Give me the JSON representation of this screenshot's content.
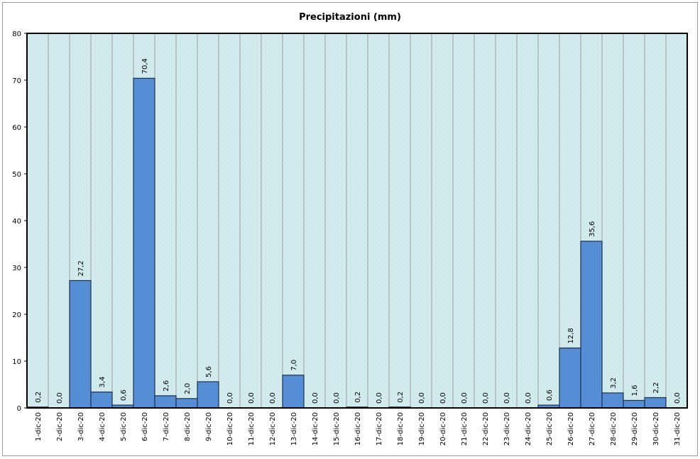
{
  "chart_data": {
    "type": "bar",
    "title": "Precipitazioni (mm)",
    "xlabel": "",
    "ylabel": "",
    "ylim": [
      0,
      80
    ],
    "yticks": [
      0,
      10,
      20,
      30,
      40,
      50,
      60,
      70,
      80
    ],
    "grid": true,
    "legend": "none",
    "colors": {
      "bar": "#558ed5",
      "bar_border": "#1f2f4f",
      "plot_bg": "#d9eef0",
      "grid": "#a0a0a0"
    },
    "categories": [
      "1-dic-20",
      "2-dic-20",
      "3-dic-20",
      "4-dic-20",
      "5-dic-20",
      "6-dic-20",
      "7-dic-20",
      "8-dic-20",
      "9-dic-20",
      "10-dic-20",
      "11-dic-20",
      "12-dic-20",
      "13-dic-20",
      "14-dic-20",
      "15-dic-20",
      "16-dic-20",
      "17-dic-20",
      "18-dic-20",
      "19-dic-20",
      "20-dic-20",
      "21-dic-20",
      "22-dic-20",
      "23-dic-20",
      "24-dic-20",
      "25-dic-20",
      "26-dic-20",
      "27-dic-20",
      "28-dic-20",
      "29-dic-20",
      "30-dic-20",
      "31-dic-20"
    ],
    "values": [
      0.2,
      0.0,
      27.2,
      3.4,
      0.6,
      70.4,
      2.6,
      2.0,
      5.6,
      0.0,
      0.0,
      0.0,
      7.0,
      0.0,
      0.0,
      0.2,
      0.0,
      0.2,
      0.0,
      0.0,
      0.0,
      0.0,
      0.0,
      0.0,
      0.6,
      12.8,
      35.6,
      3.2,
      1.6,
      2.2,
      0.0
    ],
    "labels": [
      "0,2",
      "0,0",
      "27,2",
      "3,4",
      "0,6",
      "70,4",
      "2,6",
      "2,0",
      "5,6",
      "0,0",
      "0,0",
      "0,0",
      "7,0",
      "0,0",
      "0,0",
      "0,2",
      "0,0",
      "0,2",
      "0,0",
      "0,0",
      "0,0",
      "0,0",
      "0,0",
      "0,0",
      "0,6",
      "12,8",
      "35,6",
      "3,2",
      "1,6",
      "2,2",
      "0,0"
    ]
  }
}
